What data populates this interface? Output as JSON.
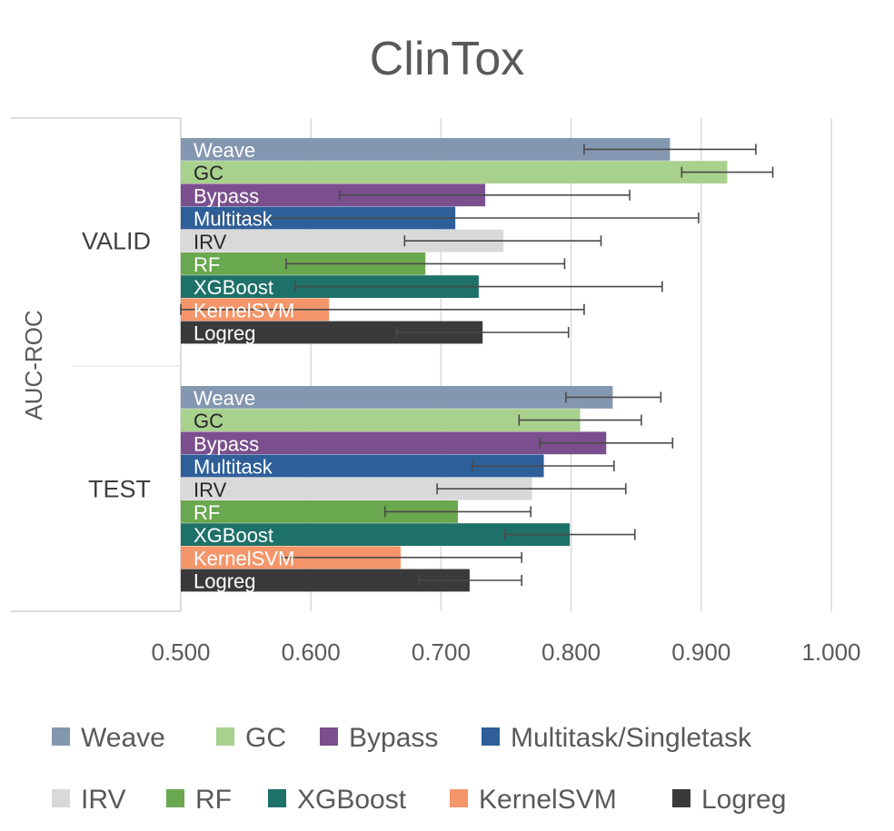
{
  "chart_data": {
    "type": "bar",
    "orientation": "horizontal",
    "title": "ClinTox",
    "metric_label": "AUC-ROC",
    "xlim": [
      0.5,
      1.0
    ],
    "x_ticks": [
      "0.500",
      "0.600",
      "0.700",
      "0.800",
      "0.900",
      "1.000"
    ],
    "grid": true,
    "legend_position": "bottom",
    "groups": [
      {
        "name": "VALID",
        "bars": [
          {
            "label": "Weave",
            "value": 0.876,
            "err_low": 0.81,
            "err_high": 0.942,
            "color": "#8497b0",
            "label_color": "#ffffff"
          },
          {
            "label": "GC",
            "value": 0.92,
            "err_low": 0.885,
            "err_high": 0.955,
            "color": "#a9d18e",
            "label_color": "#262626"
          },
          {
            "label": "Bypass",
            "value": 0.734,
            "err_low": 0.622,
            "err_high": 0.845,
            "color": "#7b4f8e",
            "label_color": "#ffffff"
          },
          {
            "label": "Multitask",
            "value": 0.711,
            "err_low": 0.525,
            "err_high": 0.898,
            "color": "#2e5f99",
            "label_color": "#ffffff"
          },
          {
            "label": "IRV",
            "value": 0.748,
            "err_low": 0.672,
            "err_high": 0.823,
            "color": "#d9d9d9",
            "label_color": "#262626"
          },
          {
            "label": "RF",
            "value": 0.688,
            "err_low": 0.581,
            "err_high": 0.795,
            "color": "#6aa84f",
            "label_color": "#ffffff"
          },
          {
            "label": "XGBoost",
            "value": 0.729,
            "err_low": 0.588,
            "err_high": 0.87,
            "color": "#1e7168",
            "label_color": "#ffffff"
          },
          {
            "label": "KernelSVM",
            "value": 0.614,
            "err_low": 0.5,
            "err_high": 0.81,
            "color": "#f4956a",
            "label_color": "#ffffff"
          },
          {
            "label": "Logreg",
            "value": 0.732,
            "err_low": 0.666,
            "err_high": 0.798,
            "color": "#3a3a3a",
            "label_color": "#ffffff"
          }
        ]
      },
      {
        "name": "TEST",
        "bars": [
          {
            "label": "Weave",
            "value": 0.832,
            "err_low": 0.796,
            "err_high": 0.869,
            "color": "#8497b0",
            "label_color": "#ffffff"
          },
          {
            "label": "GC",
            "value": 0.807,
            "err_low": 0.76,
            "err_high": 0.854,
            "color": "#a9d18e",
            "label_color": "#262626"
          },
          {
            "label": "Bypass",
            "value": 0.827,
            "err_low": 0.776,
            "err_high": 0.878,
            "color": "#7b4f8e",
            "label_color": "#ffffff"
          },
          {
            "label": "Multitask",
            "value": 0.779,
            "err_low": 0.724,
            "err_high": 0.833,
            "color": "#2e5f99",
            "label_color": "#ffffff"
          },
          {
            "label": "IRV",
            "value": 0.77,
            "err_low": 0.697,
            "err_high": 0.842,
            "color": "#d9d9d9",
            "label_color": "#262626"
          },
          {
            "label": "RF",
            "value": 0.713,
            "err_low": 0.657,
            "err_high": 0.769,
            "color": "#6aa84f",
            "label_color": "#ffffff"
          },
          {
            "label": "XGBoost",
            "value": 0.799,
            "err_low": 0.749,
            "err_high": 0.849,
            "color": "#1e7168",
            "label_color": "#ffffff"
          },
          {
            "label": "KernelSVM",
            "value": 0.669,
            "err_low": 0.577,
            "err_high": 0.762,
            "color": "#f4956a",
            "label_color": "#ffffff"
          },
          {
            "label": "Logreg",
            "value": 0.722,
            "err_low": 0.683,
            "err_high": 0.762,
            "color": "#3a3a3a",
            "label_color": "#ffffff"
          }
        ]
      }
    ],
    "legend": [
      {
        "label": "Weave",
        "color": "#8497b0"
      },
      {
        "label": "GC",
        "color": "#a9d18e"
      },
      {
        "label": "Bypass",
        "color": "#7b4f8e"
      },
      {
        "label": "Multitask/Singletask",
        "color": "#2e5f99"
      },
      {
        "label": "IRV",
        "color": "#d9d9d9"
      },
      {
        "label": "RF",
        "color": "#6aa84f"
      },
      {
        "label": "XGBoost",
        "color": "#1e7168"
      },
      {
        "label": "KernelSVM",
        "color": "#f4956a"
      },
      {
        "label": "Logreg",
        "color": "#3a3a3a"
      }
    ]
  }
}
